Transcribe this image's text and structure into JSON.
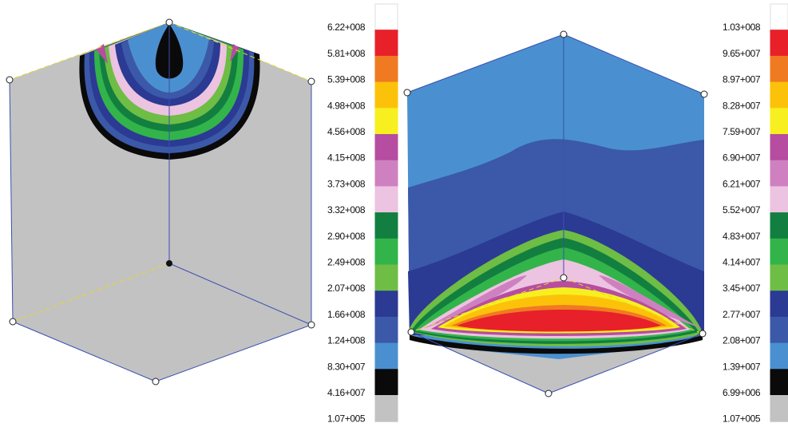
{
  "panels": [
    {
      "legend": {
        "labels": [
          "6.22+008",
          "5.81+008",
          "5.39+008",
          "4.98+008",
          "4.56+008",
          "4.15+008",
          "3.73+008",
          "3.32+008",
          "2.90+008",
          "2.49+008",
          "2.07+008",
          "1.66+008",
          "1.24+008",
          "8.30+007",
          "4.16+007",
          "1.07+005"
        ],
        "colors": [
          "#ffffff",
          "#e8202a",
          "#f07a22",
          "#fcc20a",
          "#f7ef1f",
          "#b64da0",
          "#cf80c0",
          "#ecc3e0",
          "#127f40",
          "#32b44a",
          "#6ebd45",
          "#2b3a93",
          "#3b59a8",
          "#4a90d0",
          "#0a0a0a",
          "#c2c2c2"
        ]
      }
    },
    {
      "legend": {
        "labels": [
          "1.03+008",
          "9.65+007",
          "8.97+007",
          "8.28+007",
          "7.59+007",
          "6.90+007",
          "6.21+007",
          "5.52+007",
          "4.83+007",
          "4.14+007",
          "3.45+007",
          "2.77+007",
          "2.08+007",
          "1.39+007",
          "6.99+006",
          "1.07+005"
        ],
        "colors": [
          "#ffffff",
          "#e8202a",
          "#f07a22",
          "#fcc20a",
          "#f7ef1f",
          "#b64da0",
          "#cf80c0",
          "#ecc3e0",
          "#127f40",
          "#32b44a",
          "#6ebd45",
          "#2b3a93",
          "#3b59a8",
          "#4a90d0",
          "#0a0a0a",
          "#c2c2c2"
        ]
      }
    }
  ]
}
